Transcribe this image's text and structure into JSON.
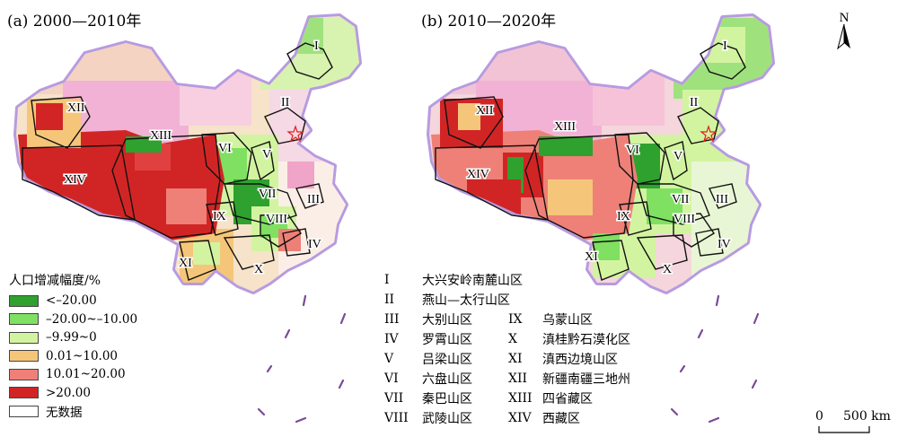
{
  "panels": [
    {
      "title": "(a) 2000—2010年"
    },
    {
      "title": "(b) 2010—2020年"
    }
  ],
  "colors": {
    "cat1": "#2fa12f",
    "cat2": "#7fe061",
    "cat3": "#d2f4a0",
    "cat4": "#f5c67a",
    "cat5": "#ee8077",
    "cat6": "#d12525",
    "nodata": "#ffffff",
    "pink": "#f2b2d5",
    "boundary": "#b79be0",
    "capital": "#e02020"
  },
  "legend": {
    "title": "人口增减幅度/%",
    "items": [
      {
        "label": "<–20.00",
        "color": "#2fa12f"
      },
      {
        "label": "–20.00~–10.00",
        "color": "#7fe061"
      },
      {
        "label": "–9.99~0",
        "color": "#d2f4a0"
      },
      {
        "label": "0.01~10.00",
        "color": "#f5c67a"
      },
      {
        "label": "10.01~20.00",
        "color": "#ee8077"
      },
      {
        "label": ">20.00",
        "color": "#d12525"
      },
      {
        "label": "无数据",
        "color": "#ffffff"
      }
    ]
  },
  "regions": [
    {
      "numeral": "I",
      "name": "大兴安岭南麓山区"
    },
    {
      "numeral": "II",
      "name": "燕山—太行山区"
    },
    {
      "numeral": "III",
      "name": "大别山区"
    },
    {
      "numeral": "IV",
      "name": "罗霄山区"
    },
    {
      "numeral": "V",
      "name": "吕梁山区"
    },
    {
      "numeral": "VI",
      "name": "六盘山区"
    },
    {
      "numeral": "VII",
      "name": "秦巴山区"
    },
    {
      "numeral": "VIII",
      "name": "武陵山区"
    },
    {
      "numeral": "IX",
      "name": "乌蒙山区"
    },
    {
      "numeral": "X",
      "name": "滇桂黔石漠化区"
    },
    {
      "numeral": "XI",
      "name": "滇西边境山区"
    },
    {
      "numeral": "XII",
      "name": "新疆南疆三地州"
    },
    {
      "numeral": "XIII",
      "name": "四省藏区"
    },
    {
      "numeral": "XIV",
      "name": "西藏区"
    }
  ],
  "north_arrow": {
    "label": "N"
  },
  "scale_bar": {
    "start": "0",
    "end": "500 km"
  }
}
